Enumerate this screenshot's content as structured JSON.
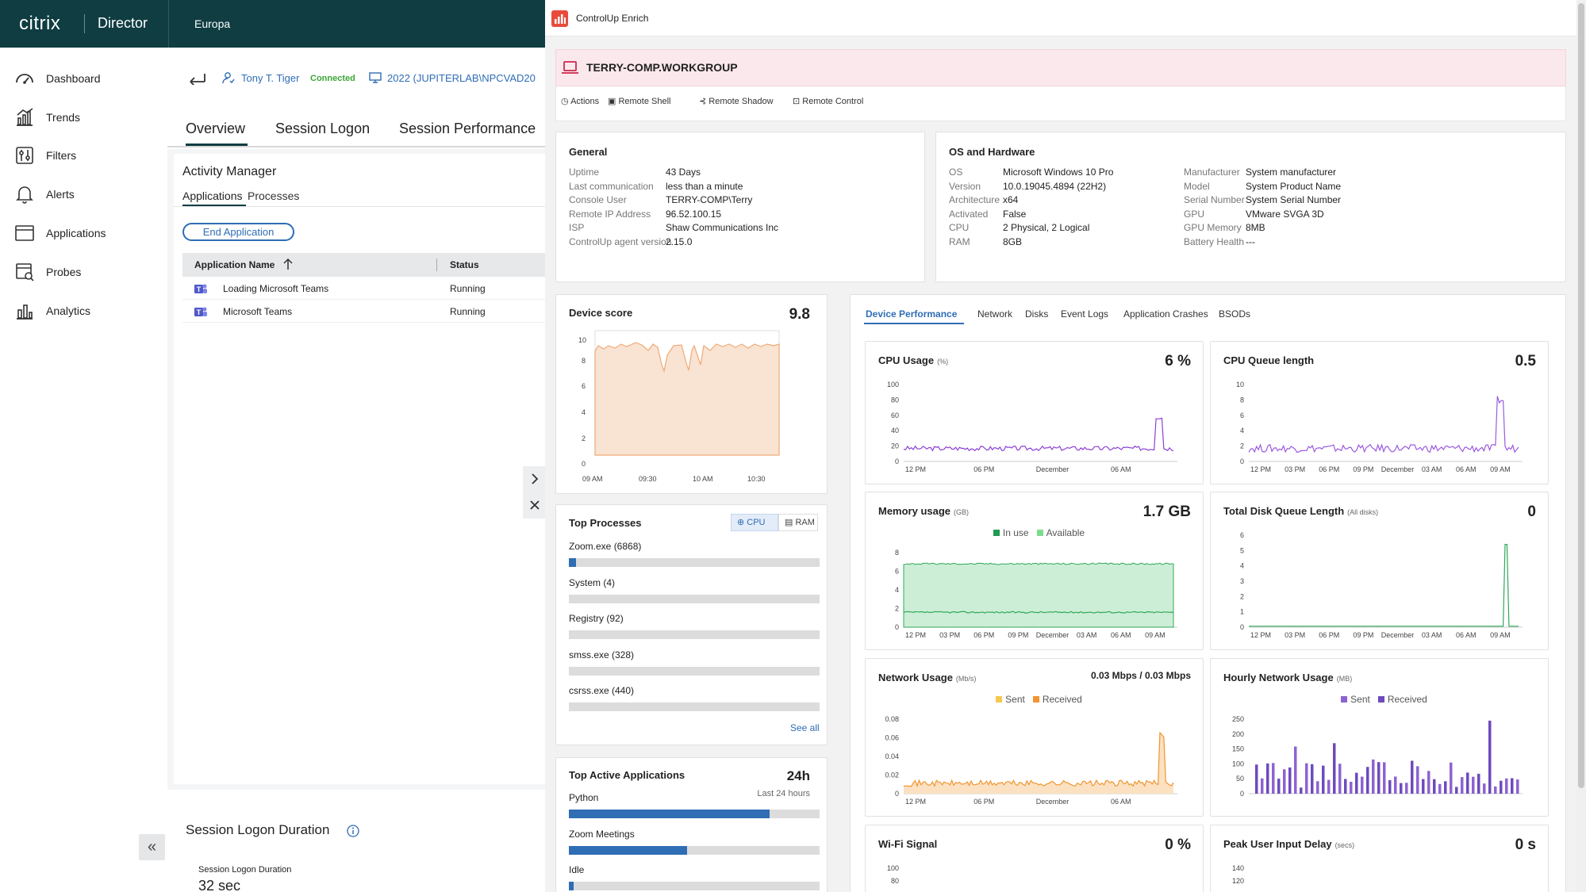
{
  "citrix": {
    "brand": "citrix",
    "product": "Director",
    "site": "Europa",
    "nav": [
      "Dashboard",
      "Trends",
      "Filters",
      "Alerts",
      "Applications",
      "Probes",
      "Analytics"
    ],
    "user": {
      "name": "Tony T. Tiger",
      "status": "Connected",
      "machine": "2022 (JUPITERLAB\\NPCVAD20"
    },
    "tabs": [
      "Overview",
      "Session Logon",
      "Session Performance"
    ],
    "activity_manager": {
      "title": "Activity Manager",
      "subtabs": [
        "Applications",
        "Processes"
      ],
      "end_button": "End Application",
      "columns": [
        "Application Name",
        "Status"
      ],
      "rows": [
        {
          "name": "Loading Microsoft Teams",
          "status": "Running"
        },
        {
          "name": "Microsoft Teams",
          "status": "Running"
        }
      ]
    },
    "logon": {
      "title": "Session Logon Duration",
      "sublabel": "Session Logon Duration",
      "value": "32 sec"
    }
  },
  "cu": {
    "app_title": "ControlUp Enrich",
    "device": "TERRY-COMP.WORKGROUP",
    "actions": [
      "Actions",
      "Remote Shell",
      "Remote Shadow",
      "Remote Control"
    ],
    "general": {
      "title": "General",
      "rows": [
        {
          "k": "Uptime",
          "v": "43 Days"
        },
        {
          "k": "Last communication",
          "v": "less than a minute"
        },
        {
          "k": "Console User",
          "v": "TERRY-COMP\\Terry"
        },
        {
          "k": "Remote IP Address",
          "v": "96.52.100.15"
        },
        {
          "k": "ISP",
          "v": "Shaw Communications Inc"
        },
        {
          "k": "ControlUp agent version",
          "v": "2.15.0"
        }
      ]
    },
    "os": {
      "title": "OS and Hardware",
      "left": [
        {
          "k": "OS",
          "v": "Microsoft Windows 10 Pro"
        },
        {
          "k": "Version",
          "v": "10.0.19045.4894 (22H2)"
        },
        {
          "k": "Architecture",
          "v": "x64"
        },
        {
          "k": "Activated",
          "v": "False"
        },
        {
          "k": "CPU",
          "v": "2 Physical, 2 Logical"
        },
        {
          "k": "RAM",
          "v": "8GB"
        }
      ],
      "right": [
        {
          "k": "Manufacturer",
          "v": "System manufacturer"
        },
        {
          "k": "Model",
          "v": "System Product Name"
        },
        {
          "k": "Serial Number",
          "v": "System Serial Number"
        },
        {
          "k": "GPU",
          "v": "VMware SVGA 3D"
        },
        {
          "k": "GPU Memory",
          "v": "8MB"
        },
        {
          "k": "Battery Health",
          "v": "---"
        }
      ]
    },
    "device_score": {
      "title": "Device score",
      "value": "9.8"
    },
    "top_processes": {
      "title": "Top Processes",
      "toggle": [
        "CPU",
        "RAM"
      ],
      "items": [
        {
          "name": "Zoom.exe (6868)",
          "pct": 0.03
        },
        {
          "name": "System (4)",
          "pct": 0
        },
        {
          "name": "Registry (92)",
          "pct": 0
        },
        {
          "name": "smss.exe (328)",
          "pct": 0
        },
        {
          "name": "csrss.exe (440)",
          "pct": 0
        }
      ],
      "see_all": "See all"
    },
    "top_apps": {
      "title": "Top Active Applications",
      "period": "24h",
      "period_sub": "Last 24 hours",
      "items": [
        {
          "name": "Python",
          "pct": 0.8
        },
        {
          "name": "Zoom Meetings",
          "pct": 0.47
        },
        {
          "name": "Idle",
          "pct": 0.02
        }
      ]
    },
    "perf_tabs": [
      "Device Performance",
      "Network",
      "Disks",
      "Event Logs",
      "Application Crashes",
      "BSODs"
    ],
    "panels": {
      "cpu_usage": {
        "title": "CPU Usage",
        "unit": "(%)",
        "value": "6 %"
      },
      "cpu_queue": {
        "title": "CPU Queue length",
        "unit": "",
        "value": "0.5"
      },
      "memory": {
        "title": "Memory usage",
        "unit": "(GB)",
        "value": "1.7 GB",
        "legend": [
          "In use",
          "Available"
        ]
      },
      "disk_queue": {
        "title": "Total Disk Queue Length",
        "unit": "(All disks)",
        "value": "0"
      },
      "network": {
        "title": "Network Usage",
        "unit": "(Mb/s)",
        "value": "0.03 Mbps / 0.03 Mbps",
        "legend": [
          "Sent",
          "Received"
        ]
      },
      "hourly_net": {
        "title": "Hourly Network Usage",
        "unit": "(MB)",
        "value": "",
        "legend": [
          "Sent",
          "Received"
        ]
      },
      "wifi": {
        "title": "Wi-Fi Signal",
        "unit": "",
        "value": "0 %"
      },
      "input_delay": {
        "title": "Peak User Input Delay",
        "unit": "(secs)",
        "value": "0 s"
      }
    }
  },
  "chart_data": [
    {
      "type": "area",
      "title": "Device score",
      "x": [
        "09 AM",
        "09:30",
        "10 AM",
        "10:30"
      ],
      "yticks": [
        0,
        2,
        4,
        6,
        8,
        10
      ],
      "ylim": [
        0,
        10
      ]
    },
    {
      "type": "line",
      "title": "CPU Usage",
      "x": [
        "12 PM",
        "06 PM",
        "December",
        "06 AM"
      ],
      "yticks": [
        0,
        20,
        40,
        60,
        80,
        100
      ],
      "ylim": [
        0,
        100
      ]
    },
    {
      "type": "line",
      "title": "CPU Queue length",
      "x": [
        "12 PM",
        "03 PM",
        "06 PM",
        "09 PM",
        "December",
        "03 AM",
        "06 AM",
        "09 AM"
      ],
      "yticks": [
        0,
        2,
        4,
        6,
        8,
        10
      ],
      "ylim": [
        0,
        10
      ]
    },
    {
      "type": "area",
      "title": "Memory usage",
      "x": [
        "12 PM",
        "03 PM",
        "06 PM",
        "09 PM",
        "December",
        "03 AM",
        "06 AM",
        "09 AM"
      ],
      "yticks": [
        0,
        2,
        4,
        6,
        8
      ],
      "ylim": [
        0,
        8
      ],
      "series": [
        {
          "name": "In use"
        },
        {
          "name": "Available"
        }
      ]
    },
    {
      "type": "line",
      "title": "Total Disk Queue Length",
      "x": [
        "12 PM",
        "03 PM",
        "06 PM",
        "09 PM",
        "December",
        "03 AM",
        "06 AM",
        "09 AM"
      ],
      "yticks": [
        0,
        1,
        2,
        3,
        4,
        5,
        6
      ],
      "ylim": [
        0,
        6
      ]
    },
    {
      "type": "area",
      "title": "Network Usage",
      "x": [
        "12 PM",
        "06 PM",
        "December",
        "06 AM"
      ],
      "yticks": [
        0,
        0.02,
        0.04,
        0.06,
        0.08
      ],
      "ylim": [
        0,
        0.08
      ],
      "series": [
        {
          "name": "Sent"
        },
        {
          "name": "Received"
        }
      ]
    },
    {
      "type": "bar",
      "title": "Hourly Network Usage",
      "yticks": [
        0,
        50,
        100,
        150,
        200,
        250
      ],
      "ylim": [
        0,
        250
      ],
      "series": [
        {
          "name": "Sent"
        },
        {
          "name": "Received"
        }
      ]
    },
    {
      "type": "line",
      "title": "Wi-Fi Signal",
      "yticks": [
        80,
        100
      ]
    },
    {
      "type": "line",
      "title": "Peak User Input Delay",
      "yticks": [
        120,
        140
      ]
    }
  ],
  "colors": {
    "citrix_header": "#0f3d42",
    "accent_blue": "#2f6db5",
    "cpu_purple": "#8b3fd6",
    "memory_green": "#2fa85a",
    "network_orange": "#f0952f",
    "hourly_purple": "#7d5cc4",
    "score_orange": "#f3c8a6",
    "connected_green": "#3aa635"
  },
  "icons": [
    "dashboard-icon",
    "trends-icon",
    "filters-icon",
    "alerts-icon",
    "applications-icon",
    "probes-icon",
    "analytics-icon",
    "back-arrow-icon",
    "user-icon",
    "monitor-icon",
    "teams-icon",
    "laptop-icon",
    "chevron-right-icon",
    "close-icon",
    "collapse-icon",
    "info-icon",
    "controlup-logo-icon"
  ]
}
